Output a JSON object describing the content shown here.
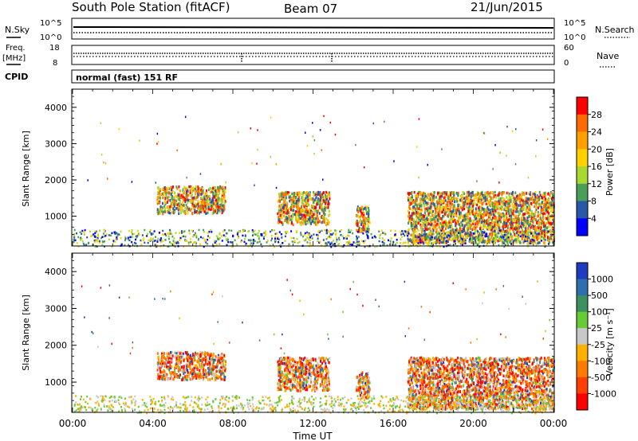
{
  "header": {
    "station": "South Pole Station (fitACF)",
    "beam": "Beam 07",
    "date": "21/Jun/2015"
  },
  "top_panels": {
    "nsky_label": "N.Sky",
    "nsky_ticks": [
      "10^5",
      "10^0"
    ],
    "nsearch_label": "N.Search",
    "nsearch_ticks": [
      "10^5",
      "10^0"
    ],
    "freq_label": "Freq.",
    "freq_unit": "[MHz]",
    "freq_ticks": [
      "18",
      "8"
    ],
    "nave_label": "Nave",
    "nave_ticks": [
      "60",
      "0"
    ],
    "cpid_label": "CPID",
    "cpid_value": "normal (fast) 151 RF"
  },
  "chart_data": [
    {
      "type": "heatmap",
      "name": "power",
      "ylabel": "Slant Range [km]",
      "xlabel": "",
      "ylim": [
        180,
        4500
      ],
      "y_ticks": [
        1000,
        2000,
        3000,
        4000
      ],
      "xlim": [
        0,
        24
      ],
      "colorbar": {
        "label": "Power [dB]",
        "ticks": [
          "28",
          "24",
          "20",
          "16",
          "12",
          "8",
          "4"
        ],
        "colors": [
          "#ff0000",
          "#ff6a00",
          "#ff9f00",
          "#ffd000",
          "#a8d832",
          "#4a9e5a",
          "#2a58a8",
          "#0000ff"
        ]
      },
      "echo_regions": [
        {
          "t": [
            4.2,
            7.6
          ],
          "range_km": [
            1100,
            1850
          ]
        },
        {
          "t": [
            10.2,
            12.8
          ],
          "range_km": [
            800,
            1700
          ]
        },
        {
          "t": [
            14.1,
            14.8
          ],
          "range_km": [
            600,
            1300
          ]
        },
        {
          "t": [
            16.7,
            24.0
          ],
          "range_km": [
            300,
            1700
          ]
        },
        {
          "t": [
            0.0,
            24.0
          ],
          "range_km": [
            180,
            650
          ]
        }
      ]
    },
    {
      "type": "heatmap",
      "name": "velocity",
      "ylabel": "Slant Range [km]",
      "xlabel": "Time UT",
      "ylim": [
        180,
        4500
      ],
      "y_ticks": [
        1000,
        2000,
        3000,
        4000
      ],
      "xlim": [
        0,
        24
      ],
      "x_ticks": [
        "00:00",
        "04:00",
        "08:00",
        "12:00",
        "16:00",
        "20:00",
        "00:00"
      ],
      "colorbar": {
        "label": "Velocity [m s⁻¹]",
        "ticks": [
          "1000",
          "500",
          "100",
          "25",
          "-25",
          "-100",
          "-500",
          "-1000"
        ],
        "colors": [
          "#1f3cc0",
          "#2f6fb0",
          "#3e9060",
          "#66cc33",
          "#c8c8c8",
          "#ffb000",
          "#ff7a00",
          "#ff4000",
          "#ff0000"
        ]
      },
      "echo_regions": [
        {
          "t": [
            4.2,
            7.6
          ],
          "range_km": [
            1100,
            1850
          ]
        },
        {
          "t": [
            10.2,
            12.8
          ],
          "range_km": [
            800,
            1700
          ]
        },
        {
          "t": [
            14.1,
            14.8
          ],
          "range_km": [
            600,
            1300
          ]
        },
        {
          "t": [
            16.7,
            24.0
          ],
          "range_km": [
            300,
            1700
          ]
        },
        {
          "t": [
            0.0,
            24.0
          ],
          "range_km": [
            180,
            650
          ]
        }
      ]
    }
  ]
}
